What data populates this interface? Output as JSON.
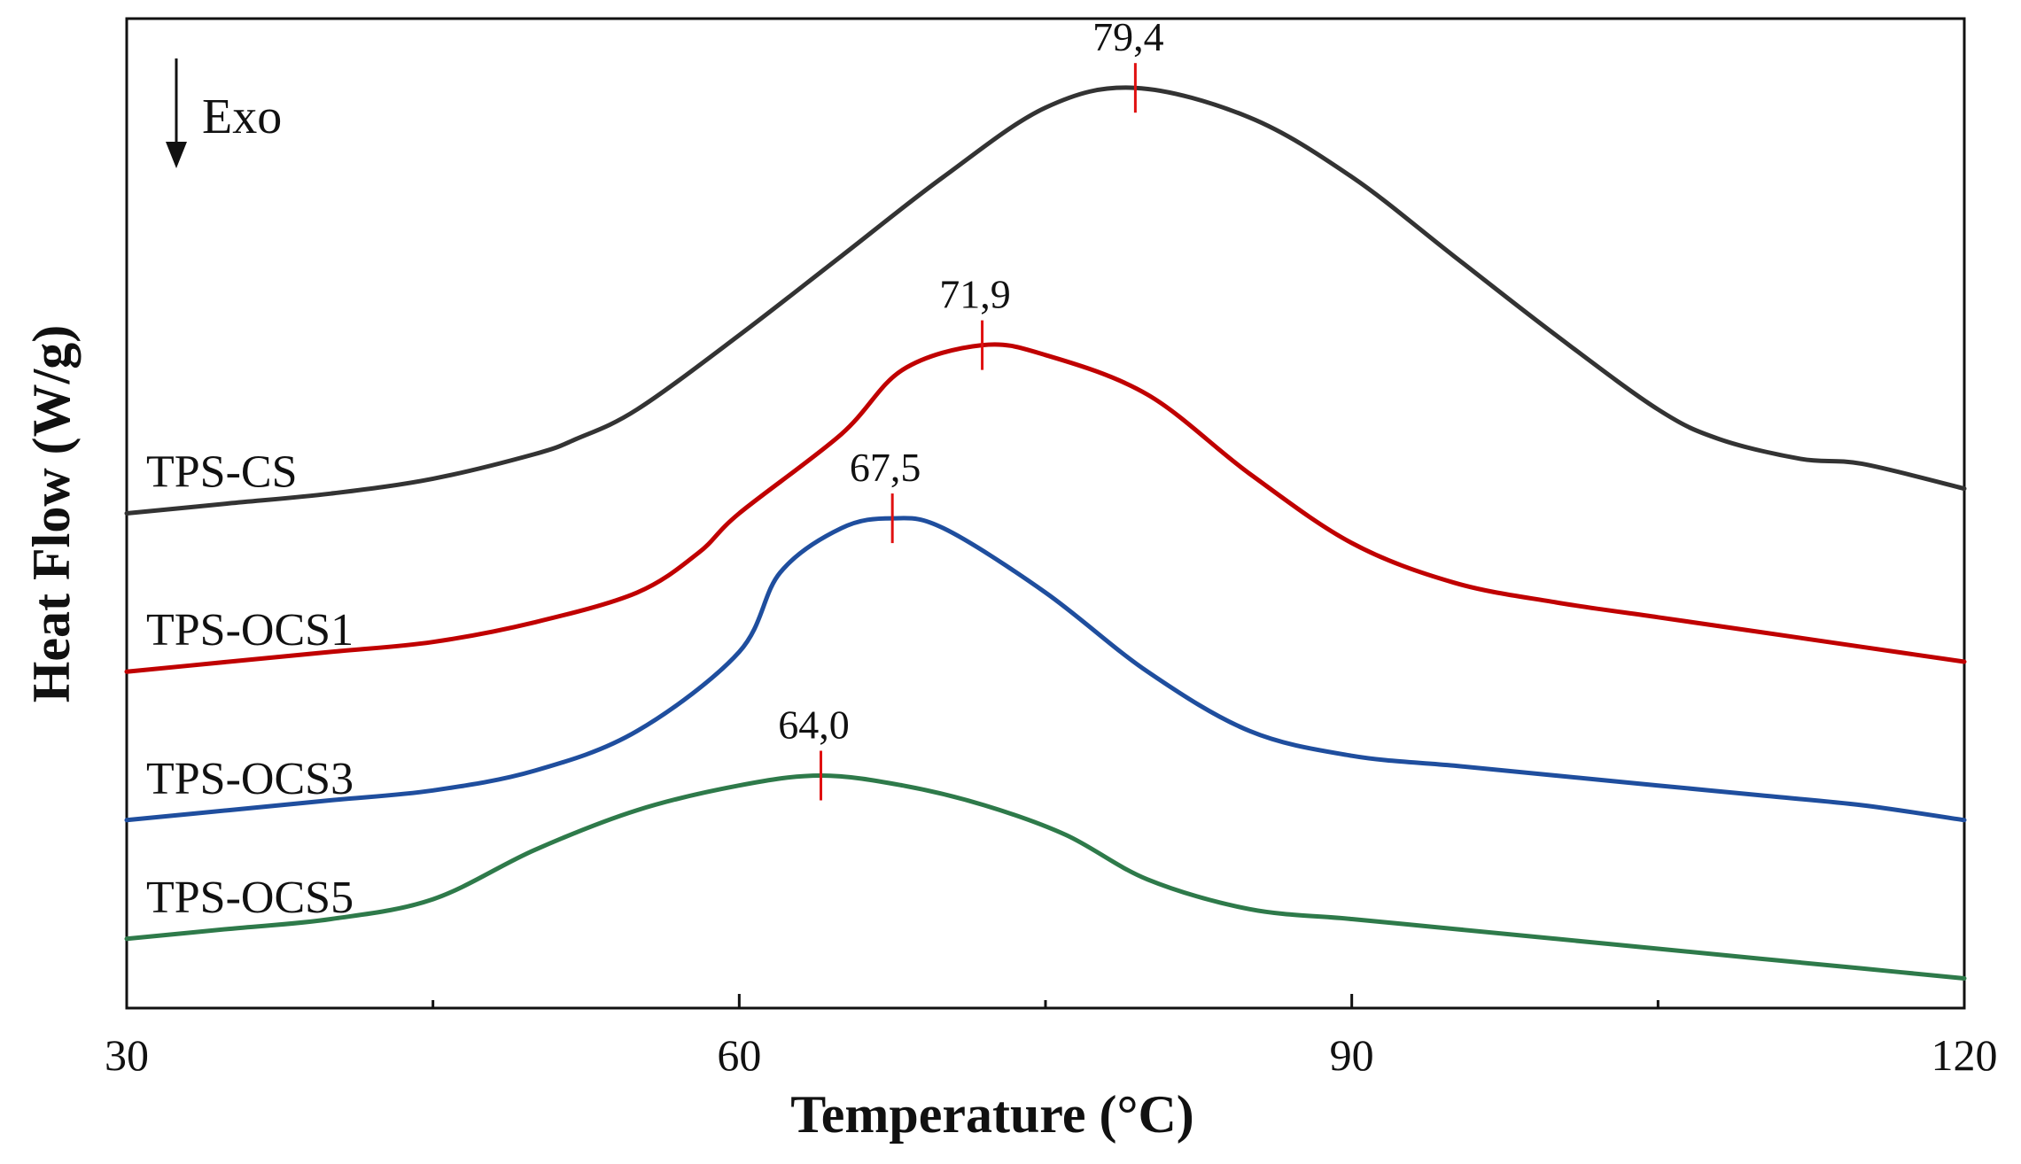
{
  "chart_data": {
    "type": "line",
    "title": "",
    "xlabel": "Temperature (°C)",
    "ylabel": "Heat Flow (W/g)",
    "xlim": [
      30,
      120
    ],
    "ylim": [
      -10,
      90
    ],
    "x_ticks": [
      30,
      60,
      90,
      120
    ],
    "x_tick_labels": [
      "30",
      "60",
      "90",
      "120"
    ],
    "y_ticks_shown": false,
    "grid": false,
    "annotation": {
      "text": "Exo",
      "arrow": "down"
    },
    "series": [
      {
        "name": "TPS-CS",
        "label": "TPS-CS",
        "color": "#333333",
        "peak_x": 79.4,
        "peak_label": "79,4",
        "x": [
          30,
          35,
          40,
          45,
          50,
          52,
          55,
          60,
          65,
          70,
          75,
          79.4,
          85,
          90,
          95,
          100,
          105,
          108,
          112,
          115,
          120
        ],
        "y": [
          40,
          41,
          42,
          43.5,
          46,
          47.5,
          50.5,
          58,
          66,
          74,
          81,
          83,
          80,
          74,
          66,
          58,
          50.5,
          47.5,
          45.5,
          45,
          42.5
        ]
      },
      {
        "name": "TPS-OCS1",
        "label": "TPS-OCS1",
        "color": "#c00000",
        "peak_x": 71.9,
        "peak_label": "71,9",
        "x": [
          30,
          35,
          40,
          45,
          50,
          55,
          58,
          60,
          65,
          68,
          71.9,
          75,
          80,
          85,
          90,
          95,
          100,
          105,
          110,
          115,
          120
        ],
        "y": [
          24,
          25,
          26,
          27,
          29,
          32,
          36,
          40,
          48,
          54.5,
          57,
          56,
          52,
          44,
          37,
          33,
          31,
          29.5,
          28,
          26.5,
          25
        ]
      },
      {
        "name": "TPS-OCS3",
        "label": "TPS-OCS3",
        "color": "#1f4e9e",
        "peak_x": 67.5,
        "peak_label": "67,5",
        "x": [
          30,
          35,
          40,
          45,
          50,
          55,
          60,
          62,
          65,
          67.5,
          70,
          75,
          80,
          85,
          90,
          95,
          100,
          105,
          110,
          115,
          120
        ],
        "y": [
          9,
          10,
          11,
          12,
          14,
          18,
          26,
          34,
          38.5,
          39.5,
          38.5,
          32,
          24,
          18,
          15.5,
          14.5,
          13.5,
          12.5,
          11.5,
          10.5,
          9
        ]
      },
      {
        "name": "TPS-OCS5",
        "label": "TPS-OCS5",
        "color": "#2e7a4a",
        "peak_x": 64.0,
        "peak_label": "64,0",
        "x": [
          30,
          35,
          40,
          45,
          50,
          55,
          60,
          64.0,
          68,
          72,
          76,
          80,
          85,
          90,
          95,
          100,
          105,
          110,
          115,
          120
        ],
        "y": [
          -3,
          -2,
          -1,
          1,
          6,
          10,
          12.5,
          13.5,
          12.5,
          10.5,
          7.5,
          3,
          0,
          -1,
          -2,
          -3,
          -4,
          -5,
          -6,
          -7
        ]
      }
    ]
  }
}
